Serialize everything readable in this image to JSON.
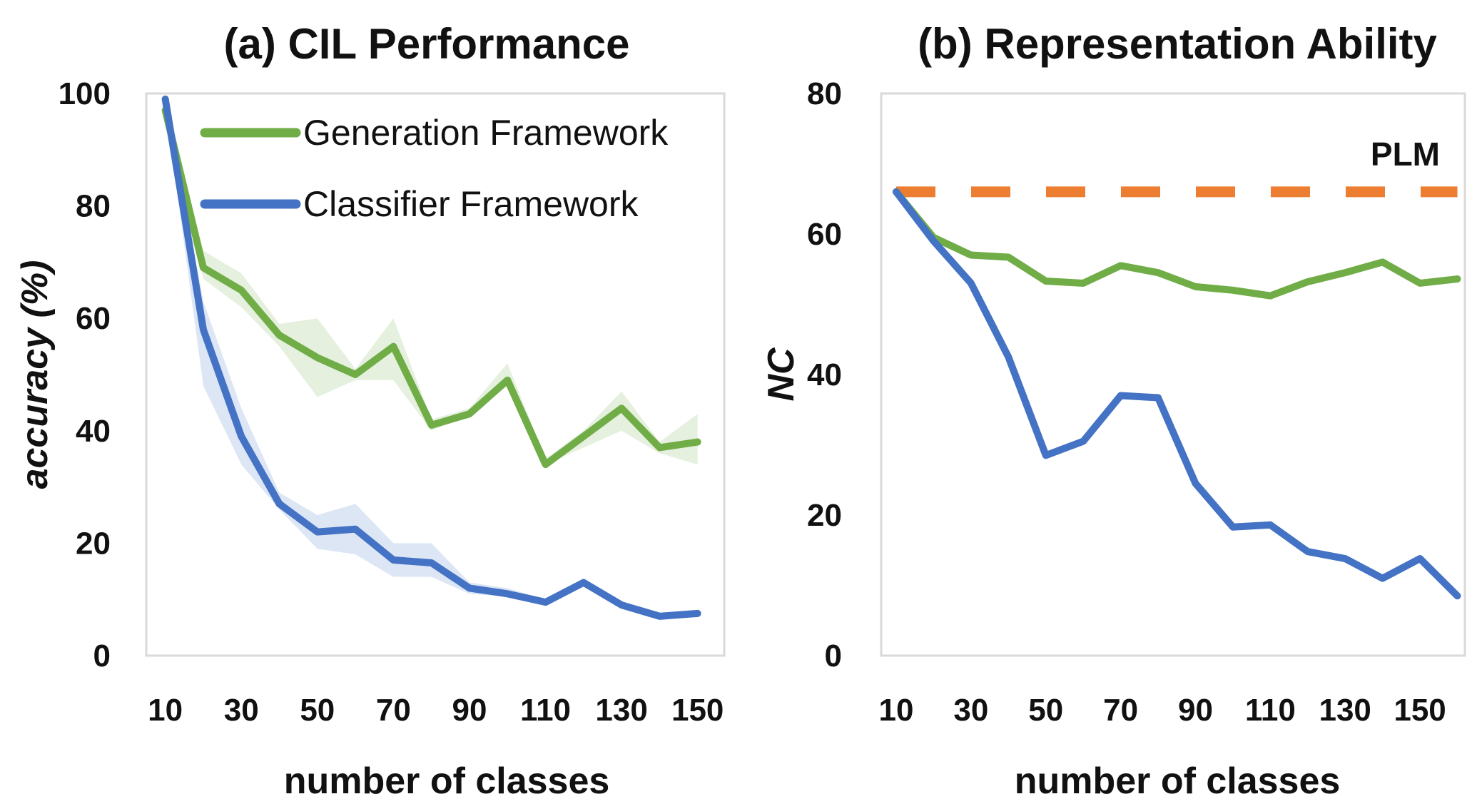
{
  "chart_data": [
    {
      "type": "line",
      "title": "(a) CIL Performance",
      "xlabel": "number of classes",
      "ylabel": "accuracy (%)",
      "xticks": [
        10,
        30,
        50,
        70,
        90,
        110,
        130,
        150
      ],
      "yticks": [
        0,
        20,
        40,
        60,
        80,
        100
      ],
      "xlim": [
        5,
        157
      ],
      "ylim": [
        0,
        100
      ],
      "grid": false,
      "legend_position": "top-right",
      "x": [
        10,
        20,
        30,
        40,
        50,
        60,
        70,
        80,
        90,
        100,
        110,
        120,
        130,
        140,
        150
      ],
      "series": [
        {
          "name": "Generation Framework",
          "color": "#70ad47",
          "values": [
            97,
            69,
            65,
            57,
            53,
            50,
            55,
            41,
            43,
            49,
            34,
            39,
            44,
            37,
            38
          ],
          "lower": [
            96,
            67,
            62,
            55,
            46,
            49,
            49,
            40,
            43,
            48,
            34,
            37,
            40,
            36,
            34
          ],
          "upper": [
            97.5,
            72,
            68,
            59,
            60,
            51,
            60,
            42,
            44,
            52,
            35,
            40,
            47,
            38,
            43
          ]
        },
        {
          "name": "Classifier Framework",
          "color": "#4472c4",
          "values": [
            99,
            58,
            39,
            27,
            22,
            22.5,
            17,
            16.5,
            12,
            11,
            9.5,
            13,
            9,
            7,
            7.5
          ],
          "lower": [
            98,
            48,
            34,
            26,
            19,
            18,
            14,
            14,
            11,
            10.5,
            9,
            12.5,
            8.5,
            6.5,
            7
          ],
          "upper": [
            99.5,
            63,
            44,
            29,
            25,
            27,
            20,
            20,
            13,
            12,
            10,
            13.5,
            9.5,
            7.5,
            8
          ]
        }
      ]
    },
    {
      "type": "line",
      "title": "(b) Representation Ability",
      "xlabel": "number of classes",
      "ylabel": "NC",
      "xticks": [
        10,
        30,
        50,
        70,
        90,
        110,
        130,
        150
      ],
      "yticks": [
        0,
        20,
        40,
        60,
        80
      ],
      "xlim": [
        6,
        162
      ],
      "ylim": [
        0,
        80
      ],
      "grid": false,
      "annotation": "PLM",
      "reference_line": {
        "value": 66,
        "color": "#ed7d31",
        "style": "dashed"
      },
      "x": [
        10,
        20,
        30,
        40,
        50,
        60,
        70,
        80,
        90,
        100,
        110,
        120,
        130,
        140,
        150,
        160
      ],
      "series": [
        {
          "color": "#70ad47",
          "values": [
            66,
            59.5,
            57,
            56.7,
            53.3,
            53,
            55.5,
            54.5,
            52.5,
            52,
            51.2,
            53.2,
            54.5,
            56,
            53,
            53.6
          ]
        },
        {
          "color": "#4472c4",
          "values": [
            66,
            59,
            53,
            42.5,
            28.5,
            30.5,
            37,
            36.7,
            24.5,
            18.3,
            18.6,
            14.8,
            13.8,
            11,
            13.8,
            8.5
          ]
        }
      ]
    }
  ]
}
